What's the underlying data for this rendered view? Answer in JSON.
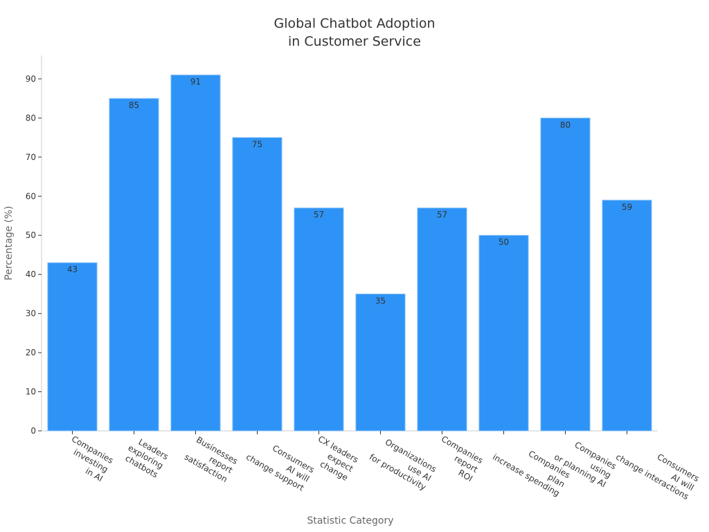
{
  "chart_data": {
    "type": "bar",
    "title": "Global Chatbot Adoption\nin Customer Service",
    "x_label": "Statistic Category",
    "y_label": "Percentage (%)",
    "categories": [
      "Companies\ninvesting\nin AI",
      "Leaders\nexploring\nchatbots",
      "Businesses\nreport\nsatisfaction",
      "Consumers\nAI will\nchange support",
      "CX leaders\nexpect\nchange",
      "Organizations\nuse AI\nfor productivity",
      "Companies\nreport\nROI",
      "Companies\nplan\nincrease spending",
      "Companies\nusing\nor planning AI",
      "Consumers\nAI will\nchange interactions"
    ],
    "values": [
      43,
      85,
      91,
      75,
      57,
      35,
      57,
      50,
      80,
      59
    ],
    "color": "#2e93f6",
    "ylim": [
      0,
      96
    ],
    "yticks": [
      0,
      10,
      20,
      30,
      40,
      50,
      60,
      70,
      80,
      90
    ]
  }
}
